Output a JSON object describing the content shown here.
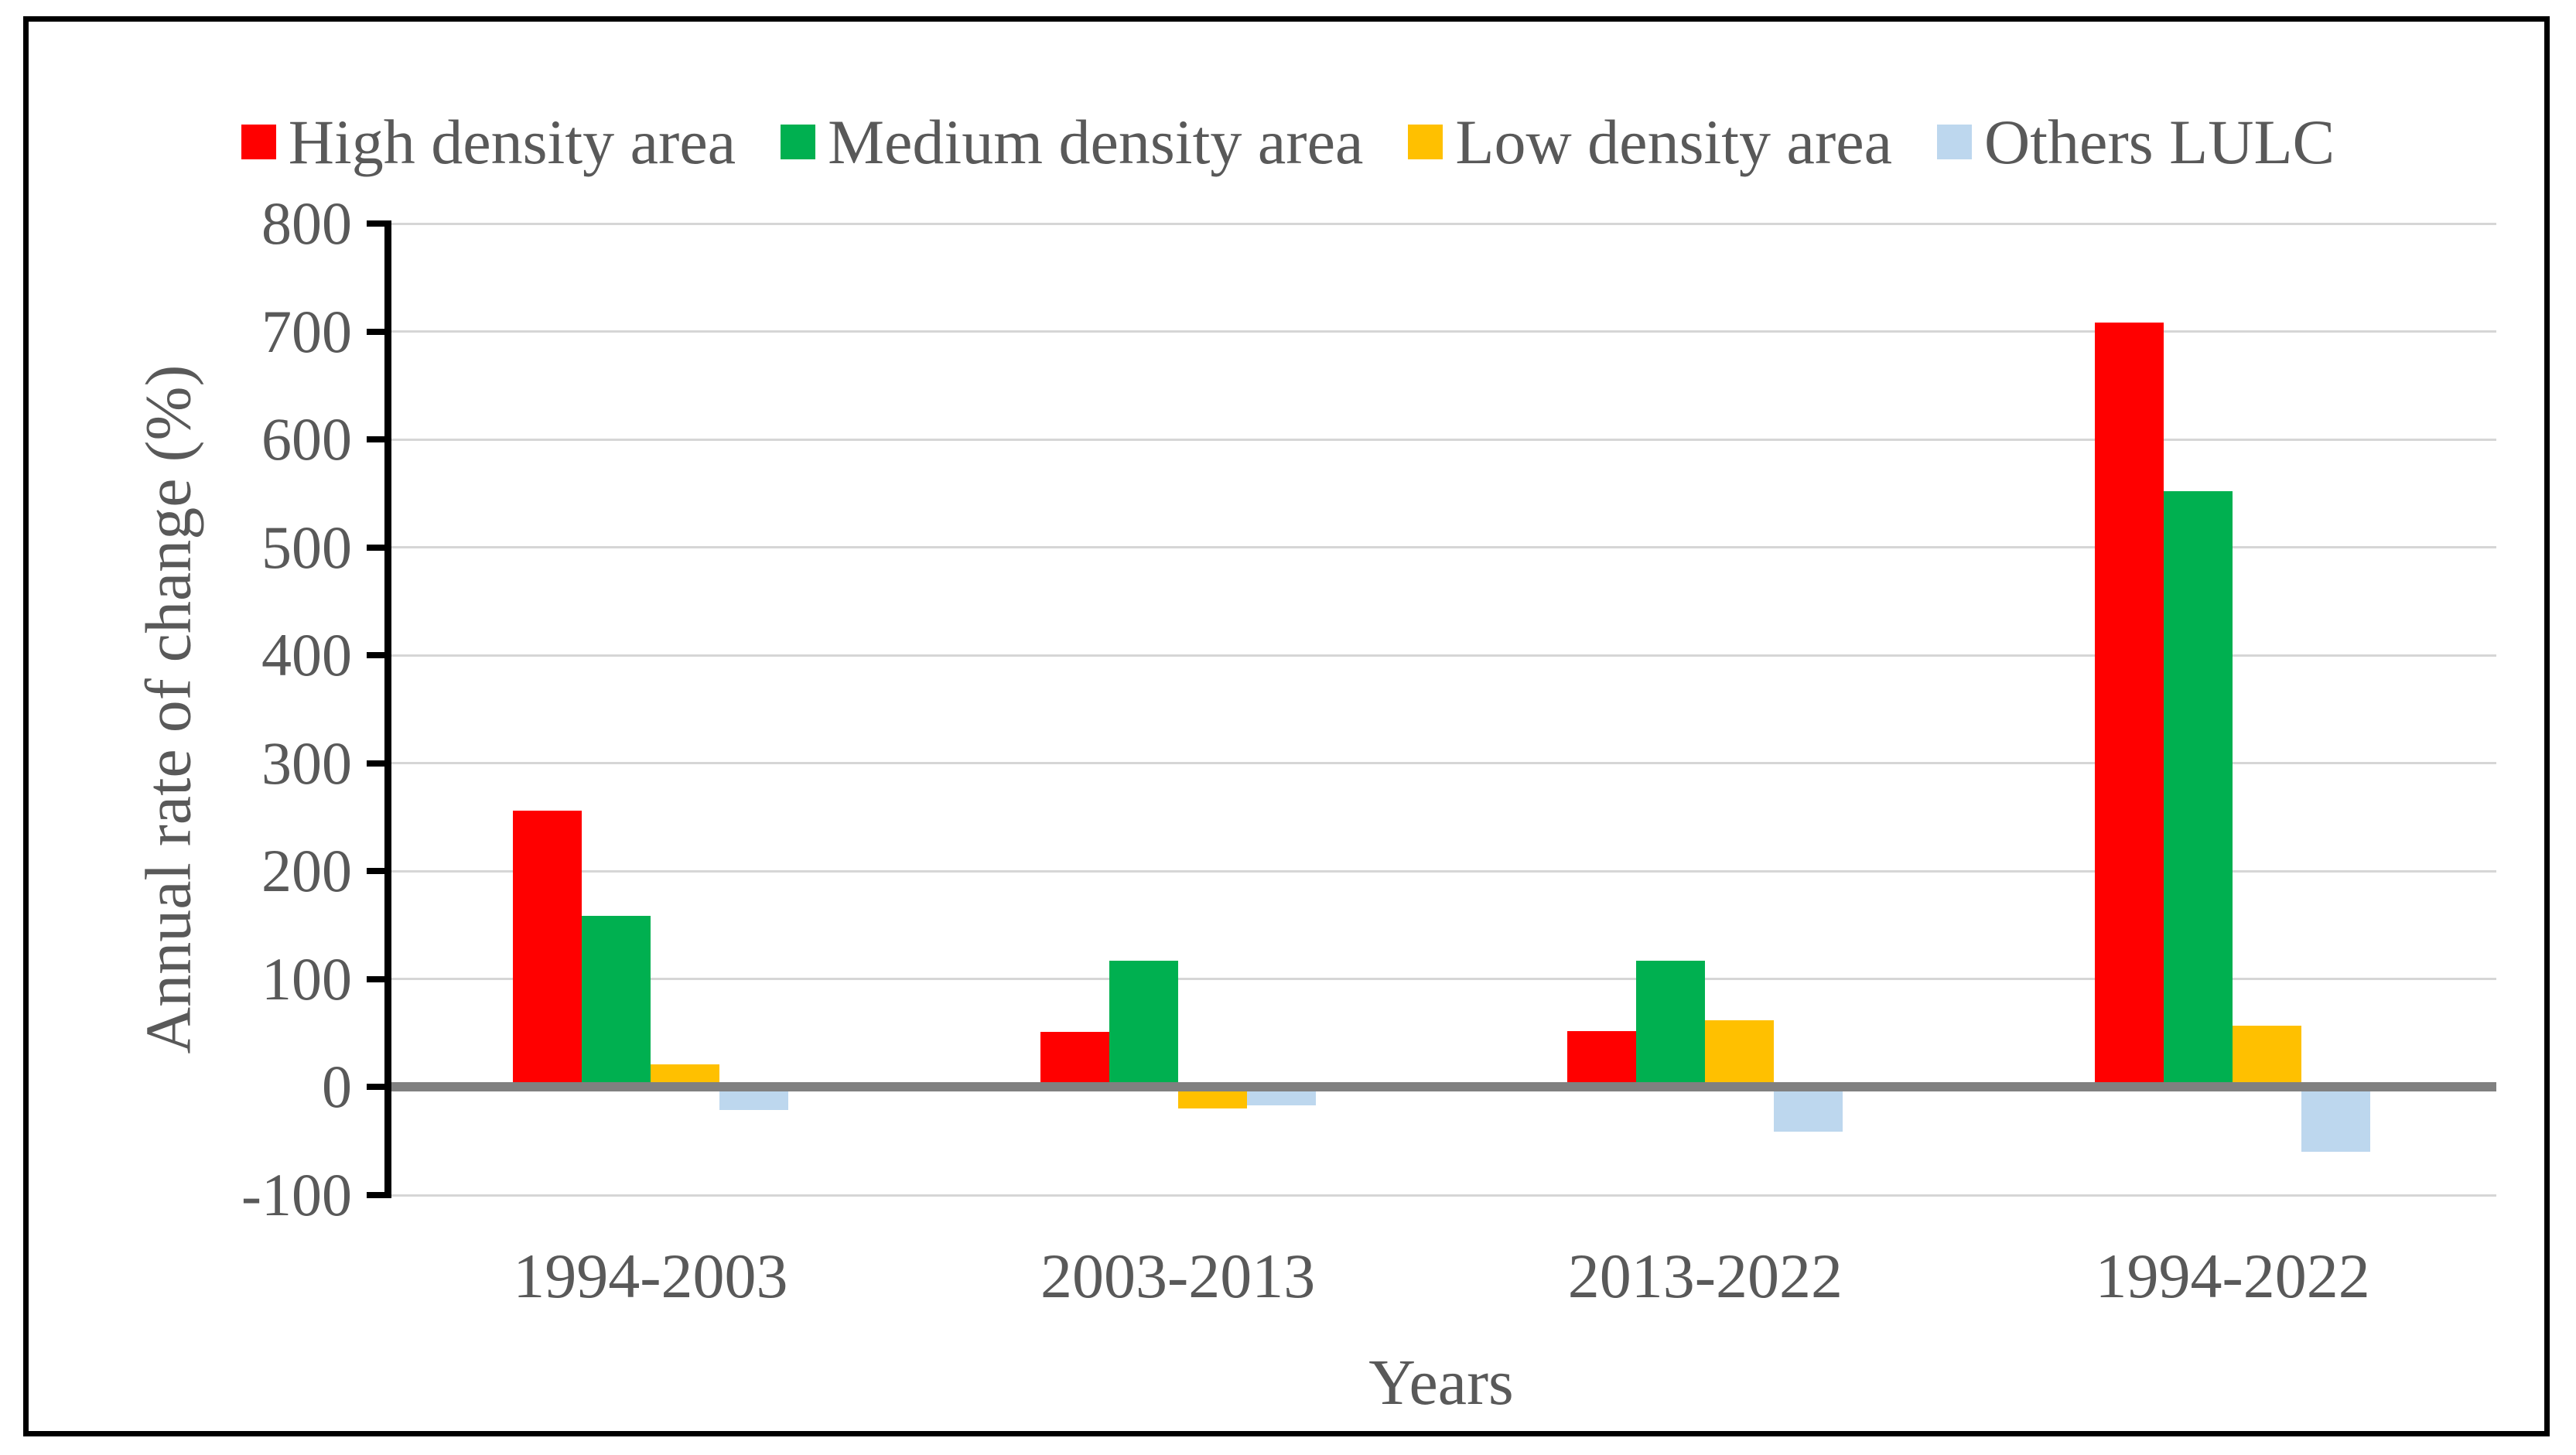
{
  "figure": {
    "background": "#FFFFFF",
    "border_color": "#000000",
    "text_color": "#595959"
  },
  "chart_data": {
    "type": "bar",
    "title": "",
    "categories": [
      "1994-2003",
      "2003-2013",
      "2013-2022",
      "1994-2022"
    ],
    "series": [
      {
        "name": "High density area",
        "color": "#FF0000",
        "values": [
          256,
          51,
          52,
          708
        ]
      },
      {
        "name": "Medium density area",
        "color": "#00B050",
        "values": [
          159,
          117,
          117,
          552
        ]
      },
      {
        "name": "Low density area",
        "color": "#FFC000",
        "values": [
          21,
          -20,
          62,
          57
        ]
      },
      {
        "name": "Others LULC",
        "color": "#BDD7EE",
        "values": [
          -21,
          -17,
          -41,
          -60
        ]
      }
    ],
    "xlabel": "Years",
    "ylabel": "Annual rate of change (%)",
    "ylim": [
      -100,
      800
    ],
    "yticks": [
      800,
      700,
      600,
      500,
      400,
      300,
      200,
      100,
      0,
      -100
    ],
    "grid": true,
    "legend_position": "top",
    "gridline_color": "#D6D6D6",
    "baseline_color": "#808080",
    "axis_line_color": "#000000"
  }
}
